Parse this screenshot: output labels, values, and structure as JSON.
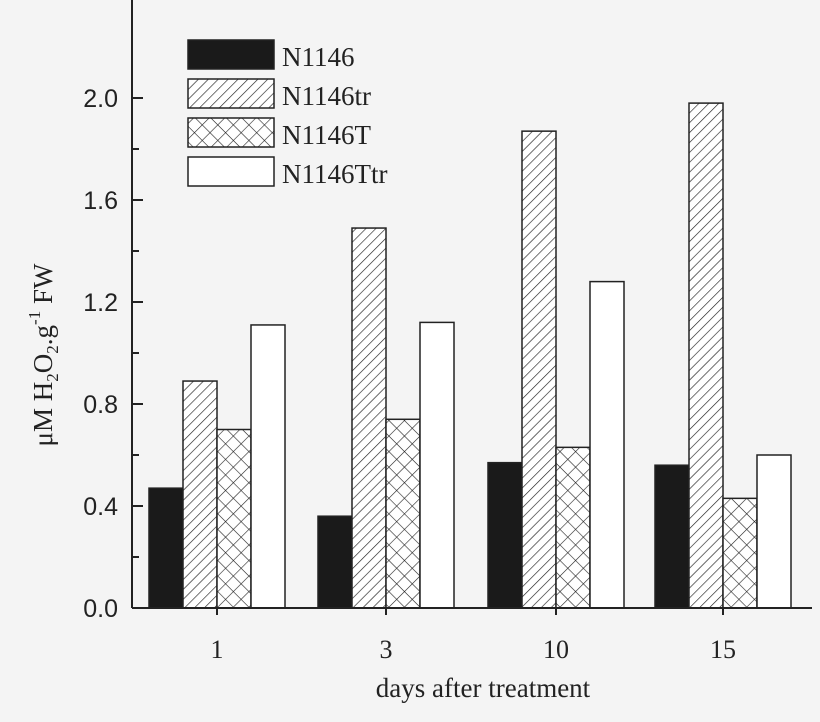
{
  "chart_data": {
    "type": "bar",
    "title": "",
    "xlabel": "days after treatment",
    "ylabel": "μM H2O2.g-1 FW",
    "ylim": [
      0,
      2.1
    ],
    "yticks": [
      "0.0",
      "0.4",
      "0.8",
      "1.2",
      "1.6",
      "2.0"
    ],
    "categories": [
      "1",
      "3",
      "10",
      "15"
    ],
    "legend_position": "top-left",
    "grid": false,
    "series": [
      {
        "name": "N1146",
        "pattern": "solid-black",
        "values": [
          0.47,
          0.36,
          0.57,
          0.56
        ]
      },
      {
        "name": "N1146tr",
        "pattern": "diagonal-hatch",
        "values": [
          0.89,
          1.49,
          1.87,
          1.98
        ]
      },
      {
        "name": "N1146T",
        "pattern": "cross-hatch",
        "values": [
          0.7,
          0.74,
          0.63,
          0.43
        ]
      },
      {
        "name": "N1146Ttr",
        "pattern": "white",
        "values": [
          1.11,
          1.12,
          1.28,
          0.6
        ]
      }
    ]
  }
}
